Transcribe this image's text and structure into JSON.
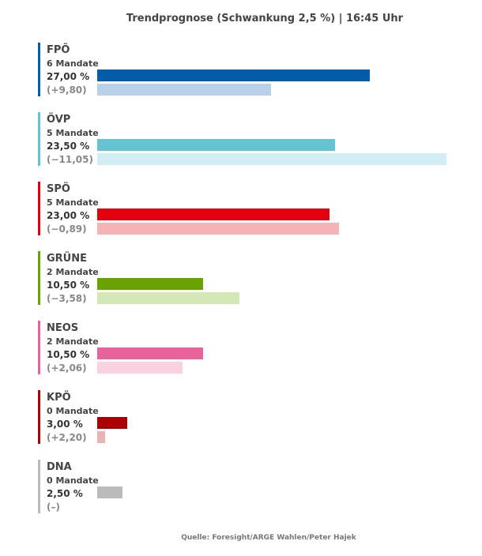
{
  "title": "Trendprognose (Schwankung 2,5 %) | 16:45 Uhr",
  "source": "Quelle: Foresight/ARGE Wahlen/Peter Hajek",
  "chart_data": {
    "type": "bar",
    "orientation": "horizontal",
    "categories": [
      "FPÖ",
      "ÖVP",
      "SPÖ",
      "GRÜNE",
      "NEOS",
      "KPÖ",
      "DNA"
    ],
    "series": [
      {
        "values": [
          27.0,
          23.5,
          23.0,
          10.5,
          10.5,
          3.0,
          2.5
        ]
      },
      {
        "values": [
          17.2,
          34.55,
          23.89,
          14.08,
          8.44,
          0.8,
          null
        ]
      }
    ],
    "xlim": [
      0,
      34.55
    ],
    "grid": false,
    "legend": "none"
  },
  "parties": [
    {
      "name": "FPÖ",
      "mandates": "6 Mandate",
      "percent": "27,00 %",
      "change": "(+9,80)",
      "value": 27.0,
      "prev": 17.2,
      "color": "#005ea8",
      "prev_color": "#b8d1e8"
    },
    {
      "name": "ÖVP",
      "mandates": "5 Mandate",
      "percent": "23,50 %",
      "change": "(−11,05)",
      "value": 23.5,
      "prev": 34.55,
      "color": "#63c3d1",
      "prev_color": "#d2eef2"
    },
    {
      "name": "SPÖ",
      "mandates": "5 Mandate",
      "percent": "23,00 %",
      "change": "(−0,89)",
      "value": 23.0,
      "prev": 23.89,
      "color": "#e2000f",
      "prev_color": "#f4b3b5"
    },
    {
      "name": "GRÜNE",
      "mandates": "2 Mandate",
      "percent": "10,50 %",
      "change": "(−3,58)",
      "value": 10.5,
      "prev": 14.08,
      "color": "#6aa200",
      "prev_color": "#d5e6b7"
    },
    {
      "name": "NEOS",
      "mandates": "2 Mandate",
      "percent": "10,50 %",
      "change": "(+2,06)",
      "value": 10.5,
      "prev": 8.44,
      "color": "#e8639b",
      "prev_color": "#f9d2e2"
    },
    {
      "name": "KPÖ",
      "mandates": "0 Mandate",
      "percent": "3,00 %",
      "change": "(+2,20)",
      "value": 3.0,
      "prev": 0.8,
      "color": "#aa0000",
      "prev_color": "#eab2b2"
    },
    {
      "name": "DNA",
      "mandates": "0 Mandate",
      "percent": "2,50 %",
      "change": "(–)",
      "value": 2.5,
      "prev": null,
      "color": "#bbbbbb",
      "prev_color": "#e5e5e5"
    }
  ]
}
